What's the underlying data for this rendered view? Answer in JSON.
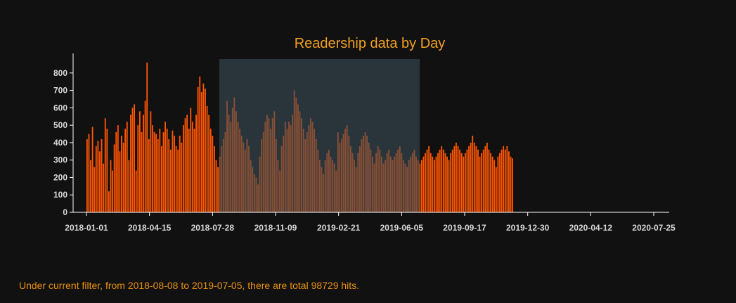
{
  "colors": {
    "background": "#111111",
    "title": "#f0a020",
    "bars": "#ff5500",
    "brush": "#3a4d58",
    "axis": "#ffffff",
    "tick_text": "#d8d8d8",
    "footer": "#e8900c"
  },
  "footer": {
    "text": "Under current filter, from 2018-08-08 to 2019-07-05, there are total 98729 hits."
  },
  "chart_data": {
    "type": "bar",
    "title": "Readership data by Day",
    "xlabel": "",
    "ylabel": "",
    "x_domain": [
      "2018-01-01",
      "2020-07-25"
    ],
    "ylim": [
      0,
      880
    ],
    "yticks": [
      0,
      100,
      200,
      300,
      400,
      500,
      600,
      700,
      800
    ],
    "xticks": [
      "2018-01-01",
      "2018-04-15",
      "2018-07-28",
      "2018-11-09",
      "2019-02-21",
      "2019-06-05",
      "2019-09-17",
      "2019-12-30",
      "2020-04-12",
      "2020-07-25"
    ],
    "brush": {
      "start": "2018-08-08",
      "end": "2019-07-05"
    },
    "grid": false,
    "legend": "none",
    "series_interval_days": 3,
    "series_start": "2018-01-02",
    "values": [
      420,
      450,
      300,
      490,
      260,
      380,
      410,
      350,
      420,
      280,
      540,
      480,
      120,
      300,
      240,
      390,
      460,
      500,
      350,
      440,
      400,
      480,
      520,
      300,
      560,
      600,
      620,
      240,
      500,
      580,
      460,
      560,
      640,
      860,
      420,
      580,
      500,
      460,
      450,
      420,
      480,
      380,
      460,
      520,
      480,
      420,
      360,
      470,
      440,
      380,
      360,
      440,
      400,
      500,
      540,
      560,
      480,
      600,
      520,
      480,
      560,
      720,
      780,
      690,
      740,
      710,
      610,
      560,
      480,
      440,
      380,
      300,
      260,
      320,
      380,
      420,
      460,
      640,
      560,
      520,
      600,
      660,
      580,
      520,
      480,
      440,
      400,
      360,
      420,
      380,
      300,
      260,
      220,
      200,
      160,
      320,
      420,
      460,
      520,
      560,
      540,
      480,
      540,
      580,
      420,
      300,
      240,
      380,
      440,
      520,
      480,
      520,
      500,
      560,
      700,
      660,
      620,
      580,
      540,
      480,
      420,
      460,
      500,
      540,
      520,
      480,
      420,
      360,
      300,
      260,
      220,
      300,
      340,
      360,
      320,
      300,
      280,
      240,
      460,
      400,
      420,
      450,
      480,
      500,
      440,
      380,
      340,
      300,
      260,
      340,
      380,
      420,
      440,
      460,
      440,
      400,
      360,
      320,
      280,
      340,
      380,
      360,
      320,
      280,
      300,
      340,
      360,
      320,
      300,
      320,
      340,
      360,
      380,
      340,
      300,
      280,
      260,
      300,
      320,
      340,
      360,
      320,
      300,
      280,
      300,
      320,
      340,
      360,
      380,
      340,
      320,
      300,
      320,
      340,
      360,
      380,
      360,
      340,
      320,
      300,
      340,
      360,
      380,
      400,
      380,
      360,
      340,
      320,
      340,
      360,
      380,
      400,
      440,
      400,
      380,
      360,
      320,
      340,
      360,
      380,
      400,
      360,
      340,
      320,
      300,
      260,
      320,
      340,
      360,
      380,
      360,
      380,
      350,
      320,
      310
    ]
  }
}
